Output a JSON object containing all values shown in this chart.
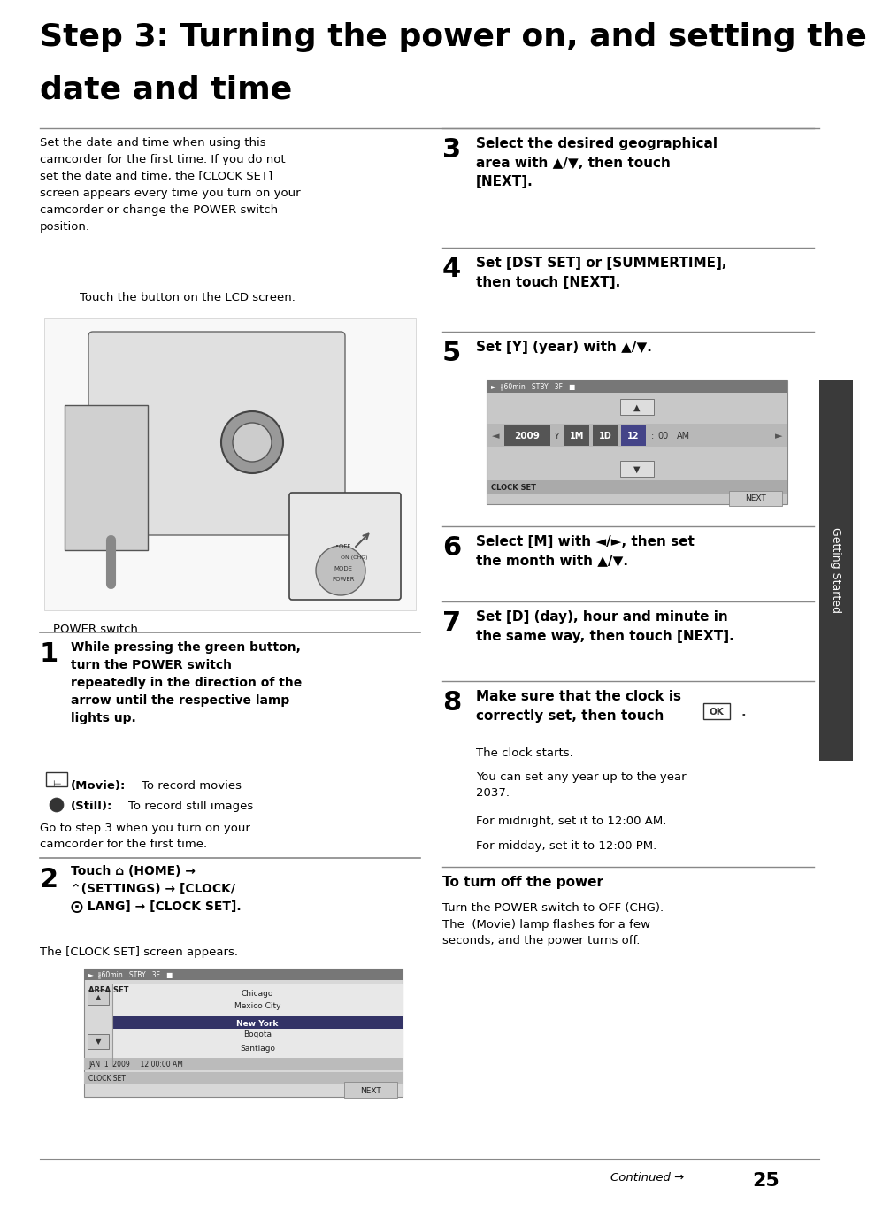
{
  "bg_color": "#ffffff",
  "text_color": "#000000",
  "sidebar_color": "#3a3a3a",
  "sidebar_text": "Getting Started",
  "title_line1": "Step 3: Turning the power on, and setting the",
  "title_line2": "date and time",
  "intro_text": "Set the date and time when using this\ncamcorder for the first time. If you do not\nset the date and time, the [CLOCK SET]\nscreen appears every time you turn on your\ncamcorder or change the POWER switch\nposition.",
  "touch_label": "Touch the button on the LCD screen.",
  "power_label": "POWER switch",
  "step1_bold": "While pressing the green button,\nturn the POWER switch\nrepeatedly in the direction of the\narrow until the respective lamp\nlights up.",
  "step1_note": "Go to step 3 when you turn on your\ncamcorder for the first time.",
  "step2_bold_line1": "Touch  (HOME) →",
  "step2_bold_line2": " (SETTINGS) → [CLOCK/",
  "step2_bold_line3": " LANG] → [CLOCK SET].",
  "step2_note": "The [CLOCK SET] screen appears.",
  "step3_text": "Select the desired geographical\narea with  /  , then touch\n[NEXT].",
  "step4_text": "Set [DST SET] or [SUMMERTIME],\nthen touch [NEXT].",
  "step5_text": "Set [Y] (year) with  /  .",
  "step6_text": "Select [M] with  /  , then set\nthe month with  /  .",
  "step7_text": "Set [D] (day), hour and minute in\nthe same way, then touch [NEXT].",
  "step8_text": "Make sure that the clock is\ncorrectly set, then touch  OK .",
  "step8_note1": "The clock starts.",
  "step8_note2": "You can set any year up to the year\n2037.",
  "step8_note3": "For midnight, set it to 12:00 AM.",
  "step8_note4": "For midday, set it to 12:00 PM.",
  "turn_off_title": "To turn off the power",
  "turn_off_text": "Turn the POWER switch to OFF (CHG).\nThe  (Movie) lamp flashes for a few\nseconds, and the power turns off.",
  "continued_text": "Continued →",
  "page_num": "25",
  "divider_color": "#888888",
  "gray_mid": "#aaaaaa",
  "gray_dark": "#888888",
  "gray_light": "#dddddd",
  "scr_bg": "#c8c8c8",
  "scr_bar": "#888888",
  "scr_highlight": "#333399",
  "scr_highlight2": "#555555"
}
